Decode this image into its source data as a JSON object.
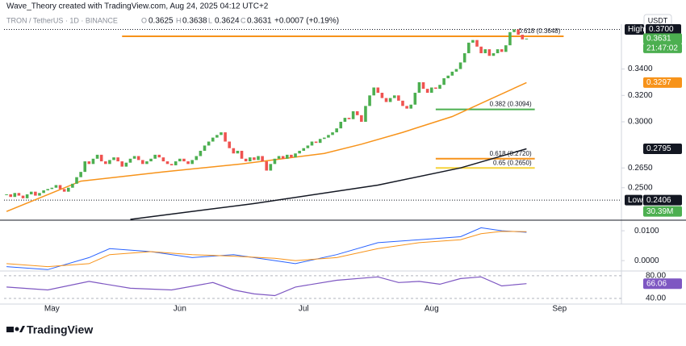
{
  "chart_data": {
    "type": "candlestick",
    "header": "Wave_Theory created with TradingView.com, Aug 24, 2025 04:12 UTC+2",
    "legend": {
      "symbol": "TRON / TetherUS · 1D · BINANCE",
      "open_label": "O",
      "open": 0.3625,
      "high_label": "H",
      "high": 0.3638,
      "low_label": "L",
      "low": 0.3624,
      "close_label": "C",
      "close": 0.3631,
      "change": "+0.0007 (+0.19%)"
    },
    "currency": "USDT",
    "up_color": "#4caf50",
    "down_color": "#ef5350",
    "close": [
      0.245,
      0.243,
      0.246,
      0.244,
      0.242,
      0.245,
      0.247,
      0.244,
      0.246,
      0.248,
      0.249,
      0.25,
      0.252,
      0.249,
      0.247,
      0.25,
      0.253,
      0.258,
      0.262,
      0.27,
      0.268,
      0.272,
      0.275,
      0.27,
      0.268,
      0.271,
      0.273,
      0.27,
      0.266,
      0.269,
      0.272,
      0.274,
      0.271,
      0.268,
      0.27,
      0.272,
      0.275,
      0.273,
      0.27,
      0.268,
      0.267,
      0.27,
      0.272,
      0.27,
      0.268,
      0.271,
      0.274,
      0.278,
      0.282,
      0.285,
      0.288,
      0.29,
      0.292,
      0.285,
      0.28,
      0.276,
      0.278,
      0.272,
      0.27,
      0.273,
      0.271,
      0.274,
      0.27,
      0.263,
      0.268,
      0.272,
      0.274,
      0.272,
      0.275,
      0.273,
      0.276,
      0.278,
      0.28,
      0.282,
      0.285,
      0.284,
      0.287,
      0.288,
      0.29,
      0.292,
      0.295,
      0.3,
      0.303,
      0.302,
      0.308,
      0.305,
      0.3,
      0.312,
      0.32,
      0.326,
      0.322,
      0.318,
      0.315,
      0.318,
      0.32,
      0.316,
      0.312,
      0.31,
      0.313,
      0.322,
      0.33,
      0.325,
      0.322,
      0.326,
      0.325,
      0.328,
      0.333,
      0.335,
      0.338,
      0.34,
      0.345,
      0.352,
      0.36,
      0.362,
      0.357,
      0.352,
      0.355,
      0.35,
      0.352,
      0.355,
      0.353,
      0.358,
      0.368,
      0.37,
      0.366,
      0.3625,
      0.3631
    ],
    "time_left": "21:47:02",
    "xlim": [
      -0.6,
      149
    ],
    "xticks": [
      {
        "value": 11,
        "label": "May"
      },
      {
        "value": 42,
        "label": "Jun"
      },
      {
        "value": 72,
        "label": "Jul"
      },
      {
        "value": 103,
        "label": "Aug"
      },
      {
        "value": 134,
        "label": "Sep"
      }
    ],
    "ylim": [
      0.226,
      0.374
    ],
    "yticks": [
      {
        "value": 0.34,
        "label": "0.3400"
      },
      {
        "value": 0.32,
        "label": "0.3200"
      },
      {
        "value": 0.3,
        "label": "0.3000"
      },
      {
        "value": 0.265,
        "label": "0.2650"
      },
      {
        "value": 0.25,
        "label": "0.2500"
      }
    ],
    "high_text": "High",
    "high_value": {
      "value": 0.37,
      "label": "0.3700"
    },
    "low_text": "Low",
    "low_value": 0.2406,
    "volume_label": "30.39M",
    "moving_averages": [
      {
        "color": "#f7931a",
        "x": [
          0,
          18,
          38,
          57,
          77,
          86,
          96,
          108,
          126
        ],
        "values": [
          0.232,
          0.255,
          0.262,
          0.268,
          0.276,
          0.283,
          0.292,
          0.304,
          0.3297
        ]
      },
      {
        "color": "#131722",
        "x": [
          30,
          60,
          90,
          110,
          126
        ],
        "values": [
          0.226,
          0.238,
          0.252,
          0.265,
          0.2795
        ]
      }
    ],
    "fib_levels": [
      {
        "label": "0.618 (0.3648)",
        "value": 0.3648,
        "color": "#f7931a",
        "start": 28,
        "end": 135
      },
      {
        "label": "0.382 (0.3094)",
        "value": 0.3094,
        "color": "#4caf50",
        "start": 104,
        "end": 128
      },
      {
        "label": "0.618 (0.2720)",
        "value": 0.272,
        "color": "#f7931a",
        "start": 104,
        "end": 128
      },
      {
        "label": "0.65 (0.2650)",
        "value": 0.265,
        "color": "#f5d33b",
        "start": 104,
        "end": 128
      }
    ],
    "macd": {
      "ylim": [
        -0.0032,
        0.013
      ],
      "yticks": [
        {
          "value": 0.01,
          "label": "0.0100"
        },
        {
          "value": 0,
          "label": "0.0000"
        }
      ],
      "macd_color": "#2962ff",
      "signal_color": "#f7931a",
      "x": [
        0,
        10,
        20,
        25,
        35,
        45,
        55,
        65,
        70,
        80,
        90,
        100,
        110,
        115,
        120,
        126
      ],
      "macd_values": [
        -0.002,
        -0.003,
        0.001,
        0.004,
        0.003,
        0.001,
        0.002,
        0,
        -0.001,
        0.002,
        0.006,
        0.007,
        0.008,
        0.011,
        0.01,
        0.0095
      ],
      "signal_values": [
        -0.001,
        -0.002,
        -0.001,
        0.002,
        0.003,
        0.002,
        0.0015,
        0.0008,
        0,
        0.001,
        0.004,
        0.006,
        0.007,
        0.009,
        0.0098,
        0.0097
      ]
    },
    "rsi": {
      "ylim": [
        30,
        87
      ],
      "yticks": [
        {
          "value": 80,
          "label": "80.00"
        },
        {
          "value": 40,
          "label": "40.00"
        }
      ],
      "color": "#7e57c2",
      "x": [
        0,
        10,
        20,
        30,
        40,
        50,
        55,
        60,
        65,
        70,
        80,
        90,
        95,
        100,
        105,
        110,
        115,
        120,
        126
      ],
      "values": [
        60,
        55,
        70,
        58,
        55,
        68,
        55,
        48,
        45,
        60,
        72,
        78,
        68,
        70,
        65,
        75,
        78,
        62,
        66.06
      ]
    },
    "footer": "TradingView"
  }
}
